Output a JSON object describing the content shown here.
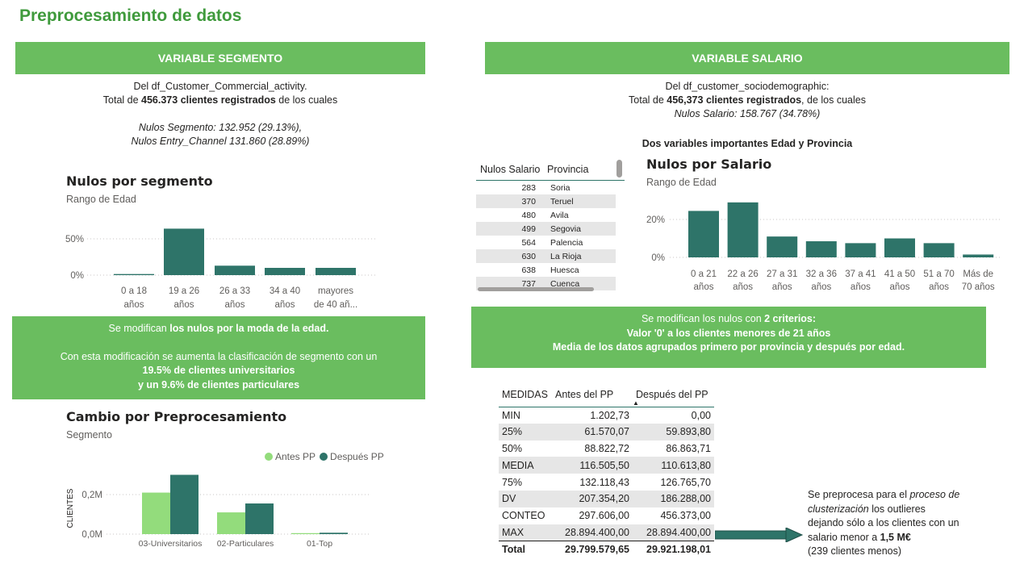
{
  "page": {
    "title": "Preprocesamiento de datos"
  },
  "left": {
    "banner": "VARIABLE SEGMENTO",
    "desc": {
      "line1": "Del df_Customer_Commercial_activity.",
      "line2_pre": "Total de ",
      "line2_bold": "456.373 clientes registrados",
      "line2_post": " de los cuales",
      "line3": "Nulos Segmento: 132.952 (29.13%),",
      "line4": "Nulos Entry_Channel 131.860 (28.89%)"
    },
    "chart1": {
      "title": "Nulos por segmento",
      "subtitle": "Rango de Edad",
      "y_ticks": [
        "50%",
        "0%"
      ],
      "cat_lines": [
        [
          "0 a 18",
          "años"
        ],
        [
          "19 a 26",
          "años"
        ],
        [
          "26 a 33",
          "años"
        ],
        [
          "34 a 40",
          "años"
        ],
        [
          "mayores",
          "de 40 añ..."
        ]
      ]
    },
    "box": {
      "l1_pre": "Se modifican ",
      "l1_bold": "los nulos por la moda de la edad.",
      "l2": "Con esta modificación se aumenta la clasificación de segmento con un",
      "l3": "19.5%  de clientes universitarios",
      "l4": "y un  9.6% de clientes particulares"
    },
    "chart2": {
      "title": "Cambio por Preprocesamiento",
      "subtitle": "Segmento",
      "legend": [
        "Antes PP",
        "Después PP"
      ],
      "ylabel": "CLIENTES",
      "y_ticks": [
        "0,2M",
        "0,0M"
      ],
      "categories": [
        "03-Universitarios",
        "02-Particulares",
        "01-Top"
      ]
    }
  },
  "right": {
    "banner": "VARIABLE SALARIO",
    "desc": {
      "line1": "Del df_customer_sociodemographic:",
      "line2_pre": "Total de ",
      "line2_bold": "456,373 clientes registrados",
      "line2_post": ", de los cuales",
      "line3": "Nulos Salario:  158.767 (34.78%)"
    },
    "subhead": "Dos variables importantes Edad y Provincia",
    "sal_table": {
      "headers": [
        "Nulos Salario",
        "Provincia"
      ],
      "rows": [
        [
          "283",
          "Soria"
        ],
        [
          "370",
          "Teruel"
        ],
        [
          "480",
          "Avila"
        ],
        [
          "499",
          "Segovia"
        ],
        [
          "564",
          "Palencia"
        ],
        [
          "630",
          "La Rioja"
        ],
        [
          "638",
          "Huesca"
        ],
        [
          "737",
          "Cuenca"
        ]
      ]
    },
    "chart3": {
      "title": "Nulos por Salario",
      "subtitle": "Rango de Edad",
      "y_ticks": [
        "20%",
        "0%"
      ],
      "cat_lines": [
        [
          "0 a 21",
          "años"
        ],
        [
          "22 a 26",
          "años"
        ],
        [
          "27 a 31",
          "años"
        ],
        [
          "32 a 36",
          "años"
        ],
        [
          "37 a 41",
          "años"
        ],
        [
          "41 a 50",
          "años"
        ],
        [
          "51 a 70",
          "años"
        ],
        [
          "Más de",
          "70 años"
        ]
      ]
    },
    "box": {
      "l1_pre": "Se modifican los nulos con ",
      "l1_bold": "2 criterios:",
      "l2": "Valor '0' a los clientes menores de 21 años",
      "l3": "Media de los datos agrupados primero por provincia y después por edad."
    },
    "medidas": {
      "headers": [
        "MEDIDAS",
        "Antes del PP",
        "Después del PP"
      ],
      "rows": [
        [
          "MIN",
          "1.202,73",
          "0,00"
        ],
        [
          "25%",
          "61.570,07",
          "59.893,80"
        ],
        [
          "50%",
          "88.822,72",
          "86.863,71"
        ],
        [
          "MEDIA",
          "116.505,50",
          "110.613,80"
        ],
        [
          "75%",
          "132.118,43",
          "126.765,70"
        ],
        [
          "DV",
          "207.354,20",
          "186.288,00"
        ],
        [
          "CONTEO",
          "297.606,00",
          "456.373,00"
        ],
        [
          "MAX",
          "28.894.400,00",
          "28.894.400,00"
        ]
      ],
      "total": [
        "Total",
        "29.799.579,65",
        "29.921.198,01"
      ]
    },
    "note": {
      "l1_pre": "Se preprocesa para el ",
      "l1_ital": "proceso de",
      "l2_ital": "clusterización",
      "l2_post": " los outlieres",
      "l3": "dejando sólo a los clientes con un",
      "l4_pre": "salario menor a ",
      "l4_bold": "1,5 M€",
      "l5": "(239 clientes menos)"
    }
  },
  "colors": {
    "bar_dark": "#2e7469",
    "bar_light": "#93dc7c",
    "banner": "#6abd5f",
    "title_green": "#3f9a3c"
  },
  "chart_data": [
    {
      "type": "bar",
      "title": "Nulos por segmento",
      "subtitle": "Rango de Edad",
      "categories": [
        "0 a 18 años",
        "19 a 26 años",
        "26 a 33 años",
        "34 a 40 años",
        "mayores de 40 añ..."
      ],
      "values": [
        1.5,
        64,
        13,
        10,
        10
      ],
      "ylim": [
        0,
        70
      ],
      "unit": "%"
    },
    {
      "type": "bar",
      "title": "Cambio por Preprocesamiento",
      "subtitle": "Segmento",
      "ylabel": "CLIENTES",
      "categories": [
        "03-Universitarios",
        "02-Particulares",
        "01-Top"
      ],
      "series": [
        {
          "name": "Antes PP",
          "values": [
            0.21,
            0.11,
            0.005
          ]
        },
        {
          "name": "Después PP",
          "values": [
            0.3,
            0.155,
            0.007
          ]
        }
      ],
      "ylim": [
        0,
        0.32
      ],
      "unit": "M"
    },
    {
      "type": "bar",
      "title": "Nulos por Salario",
      "subtitle": "Rango de Edad",
      "categories": [
        "0 a 21 años",
        "22 a 26 años",
        "27 a 31 años",
        "32 a 36 años",
        "37 a 41 años",
        "41 a 50 años",
        "51 a 70 años",
        "Más de 70 años"
      ],
      "values": [
        24.5,
        29,
        11,
        8.5,
        7.5,
        10,
        7.5,
        1.5
      ],
      "ylim": [
        0,
        30
      ],
      "unit": "%"
    }
  ]
}
